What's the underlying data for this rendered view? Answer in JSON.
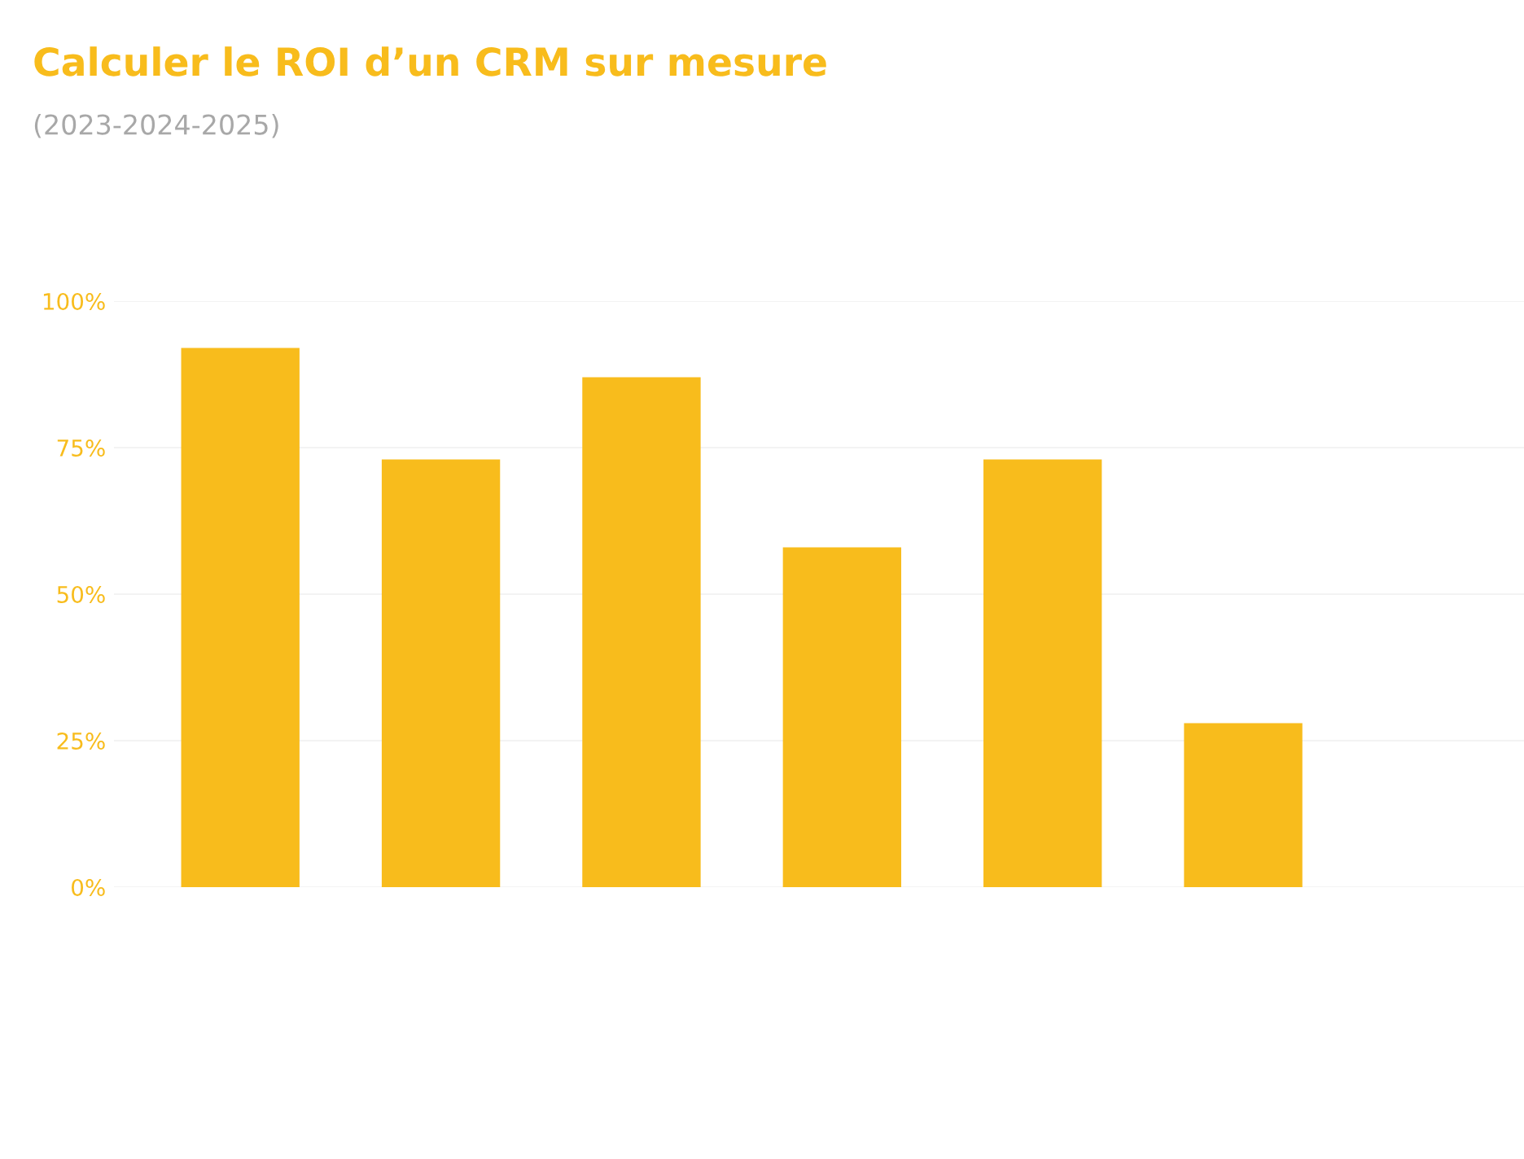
{
  "chart_data": {
    "type": "bar",
    "title": "Calculer le ROI d’un CRM sur mesure",
    "subtitle": "(2023-2024-2025)",
    "categories": [
      null,
      null,
      null,
      null,
      null,
      null
    ],
    "values": [
      92,
      73,
      87,
      58,
      73,
      28
    ],
    "color": "#f8bc1c",
    "ylim": [
      0,
      100
    ],
    "yticks": [
      {
        "value": 0,
        "label": "0%"
      },
      {
        "value": 25,
        "label": "25%"
      },
      {
        "value": 50,
        "label": "50%"
      },
      {
        "value": 75,
        "label": "75%"
      },
      {
        "value": 100,
        "label": "100%"
      }
    ],
    "grid": "y",
    "legend": false
  }
}
